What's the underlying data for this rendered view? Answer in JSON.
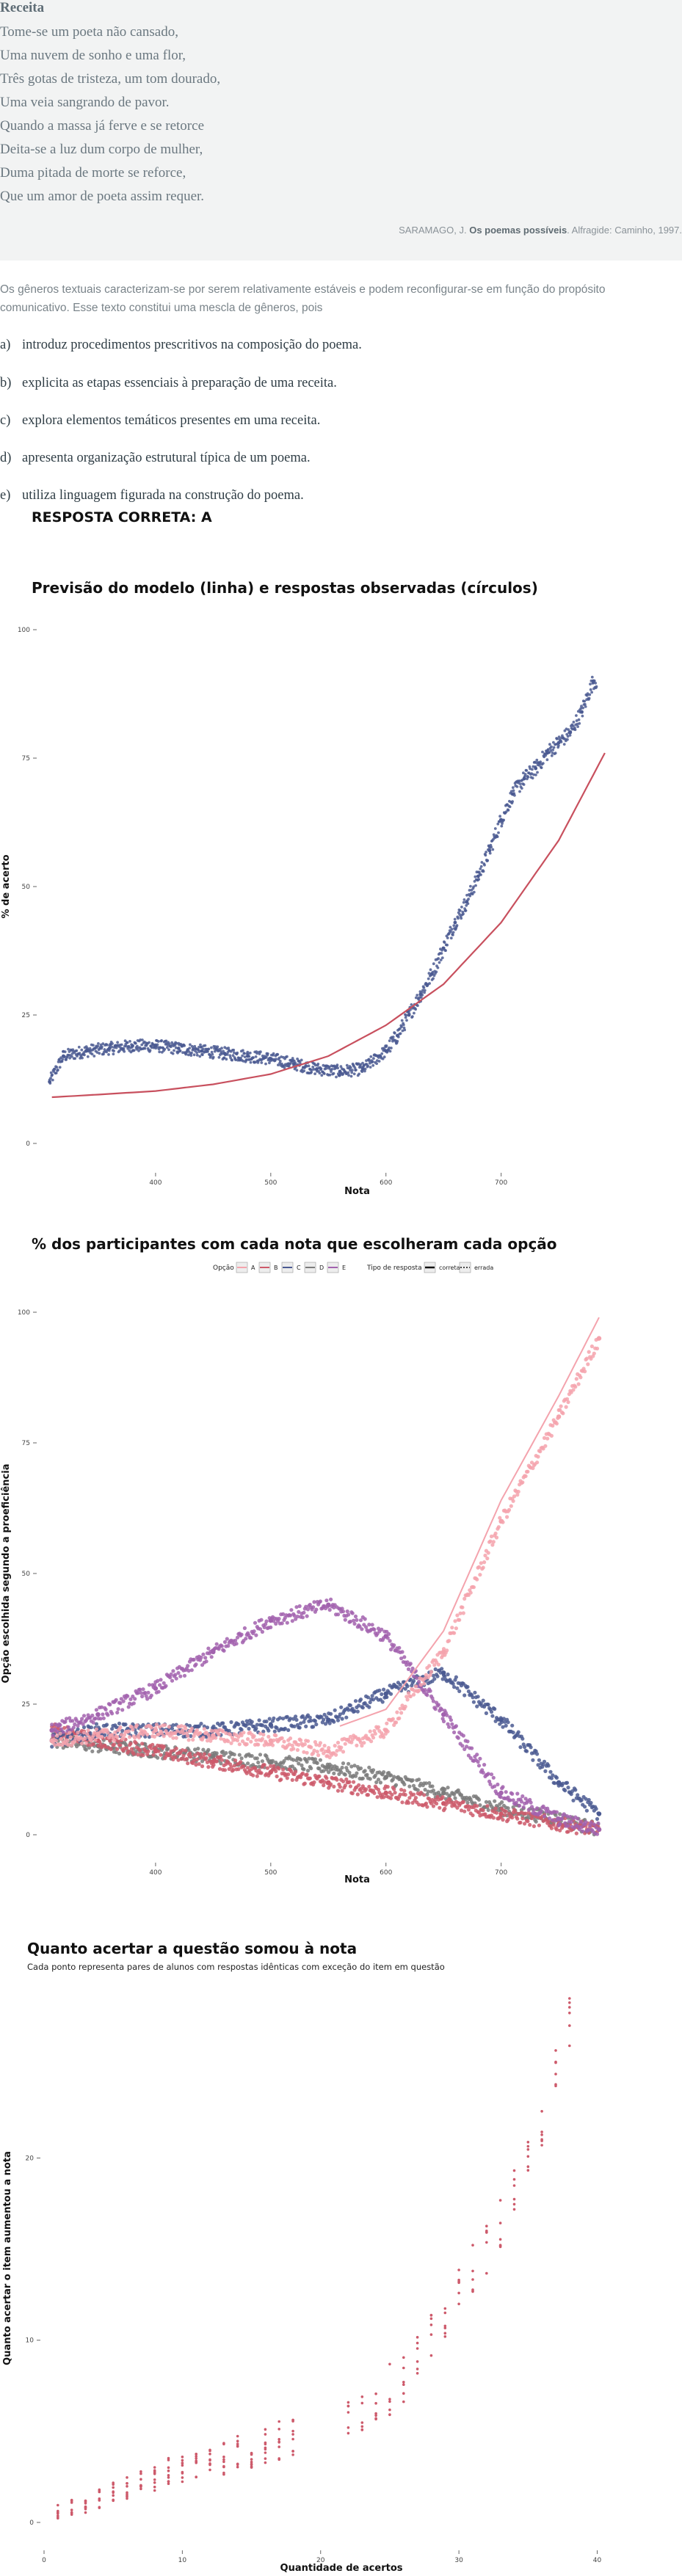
{
  "question": {
    "poem_title": "Receita",
    "poem_lines": [
      "Tome-se um poeta não cansado,",
      "Uma nuvem de sonho e uma flor,",
      "Três gotas de tristeza, um tom dourado,",
      "Uma veia sangrando de pavor.",
      "Quando a massa já ferve e se retorce",
      "Deita-se a luz dum corpo de mulher,",
      "Duma pitada de morte se reforce,",
      "Que um amor de poeta assim requer."
    ],
    "citation_author": "SARAMAGO, J.",
    "citation_title": "Os poemas possíveis",
    "citation_rest": ". Alfragide: Caminho, 1997.",
    "intro": "Os gêneros textuais caracterizam-se por serem relativamente estáveis e podem reconfigurar-se em função do propósito comunicativo. Esse texto constitui uma mescla de gêneros, pois",
    "options": [
      {
        "letter": "a)",
        "text": "introduz procedimentos prescritivos na composição do poema."
      },
      {
        "letter": "b)",
        "text": "explicita as etapas essenciais à preparação de uma receita."
      },
      {
        "letter": "c)",
        "text": "explora elementos temáticos presentes em uma receita."
      },
      {
        "letter": "d)",
        "text": "apresenta organização estrutural típica de um poema."
      },
      {
        "letter": "e)",
        "text": "utiliza linguagem figurada na construção do poema."
      }
    ],
    "answer": "RESPOSTA CORRETA: A"
  },
  "colors": {
    "A": "#f4a3ad",
    "B": "#cd5a6b",
    "C": "#4b5a92",
    "D": "#7b7b7b",
    "E": "#a262ae",
    "model_line": "#c8505e"
  },
  "chart_data": [
    {
      "type": "scatter",
      "title": "Previsão do modelo (linha) e respostas observadas (círculos)",
      "xlabel": "Nota",
      "ylabel": "% de acerto",
      "xlim": [
        300,
        850
      ],
      "ylim": [
        0,
        100
      ],
      "xticks": [
        400,
        500,
        600,
        700
      ],
      "yticks": [
        0,
        25,
        50,
        75,
        100
      ],
      "observed": {
        "x": [
          308,
          320,
          340,
          360,
          380,
          400,
          420,
          440,
          460,
          480,
          500,
          520,
          540,
          560,
          580,
          600,
          610,
          620,
          630,
          640,
          650,
          660,
          670,
          680,
          690,
          700,
          710,
          720,
          730,
          740,
          750,
          760,
          770,
          780
        ],
        "y": [
          12,
          17,
          18,
          18.5,
          19,
          19,
          18.5,
          18,
          17.5,
          17,
          16.5,
          15.5,
          14.5,
          14,
          14.5,
          18,
          21,
          25,
          29,
          33,
          38,
          43,
          47,
          52,
          57,
          63,
          68,
          71,
          73,
          76,
          78,
          80,
          84,
          90
        ]
      },
      "model": {
        "x": [
          310,
          350,
          400,
          450,
          500,
          550,
          600,
          650,
          700,
          750,
          790
        ],
        "y": [
          9,
          9.5,
          10.2,
          11.5,
          13.5,
          17,
          23,
          31,
          43,
          59,
          76
        ]
      }
    },
    {
      "type": "scatter",
      "title": "% dos participantes com cada nota que escolheram cada opção",
      "xlabel": "Nota",
      "ylabel": "Opção escolhida segundo a proeficiência",
      "xlim": [
        300,
        850
      ],
      "ylim": [
        0,
        100
      ],
      "xticks": [
        400,
        500,
        600,
        700
      ],
      "yticks": [
        0,
        25,
        50,
        75,
        100
      ],
      "legend": {
        "title_options": "Opção",
        "options": [
          "A",
          "B",
          "C",
          "D",
          "E"
        ],
        "title_type": "Tipo de resposta",
        "types": [
          "correta",
          "errada"
        ],
        "placement": "top"
      },
      "x": [
        310,
        350,
        400,
        450,
        500,
        550,
        600,
        650,
        700,
        750,
        785
      ],
      "series": [
        {
          "name": "A",
          "values": [
            18,
            19,
            20,
            19,
            18,
            16,
            20,
            35,
            60,
            80,
            95
          ]
        },
        {
          "name": "B",
          "values": [
            20,
            18,
            16,
            14,
            12,
            10,
            8,
            6,
            4,
            2,
            1
          ]
        },
        {
          "name": "C",
          "values": [
            18,
            20,
            20,
            20,
            21,
            22,
            27,
            31,
            22,
            10,
            4
          ]
        },
        {
          "name": "D",
          "values": [
            18,
            17,
            16,
            15,
            14,
            13,
            11,
            8,
            5,
            3,
            1
          ]
        },
        {
          "name": "E",
          "values": [
            20,
            23,
            28,
            35,
            41,
            44,
            38,
            23,
            8,
            3,
            1
          ]
        }
      ]
    },
    {
      "type": "scatter",
      "title": "Quanto acertar a questão somou à nota",
      "subtitle": "Cada ponto representa pares de alunos com respostas idênticas com exceção do item em questão",
      "xlabel": "Quantidade de acertos",
      "ylabel": "Quanto acertar o item aumentou a nota",
      "xlim": [
        0,
        43
      ],
      "ylim": [
        0,
        29
      ],
      "xticks": [
        0,
        10,
        20,
        30,
        40
      ],
      "yticks": [
        0,
        10,
        20
      ],
      "points": [
        [
          1,
          0.6
        ],
        [
          2,
          0.8
        ],
        [
          3,
          1.0
        ],
        [
          4,
          1.3
        ],
        [
          5,
          1.6
        ],
        [
          6,
          1.9
        ],
        [
          7,
          2.2
        ],
        [
          8,
          2.5
        ],
        [
          9,
          2.8
        ],
        [
          10,
          3.0
        ],
        [
          11,
          3.2
        ],
        [
          12,
          3.4
        ],
        [
          13,
          3.6
        ],
        [
          14,
          3.8
        ],
        [
          15,
          4.0
        ],
        [
          16,
          4.2
        ],
        [
          17,
          4.4
        ],
        [
          18,
          4.6
        ],
        [
          22,
          6.0
        ],
        [
          23,
          6.3
        ],
        [
          24,
          6.6
        ],
        [
          25,
          7.3
        ],
        [
          26,
          8.0
        ],
        [
          27,
          9.0
        ],
        [
          28,
          10.0
        ],
        [
          29,
          11.2
        ],
        [
          30,
          12.5
        ],
        [
          31,
          14.0
        ],
        [
          32,
          15.0
        ],
        [
          33,
          16.5
        ],
        [
          34,
          18.0
        ],
        [
          35,
          19.5
        ],
        [
          36,
          22.0
        ],
        [
          37,
          25.0
        ],
        [
          38,
          27.5
        ]
      ]
    }
  ]
}
